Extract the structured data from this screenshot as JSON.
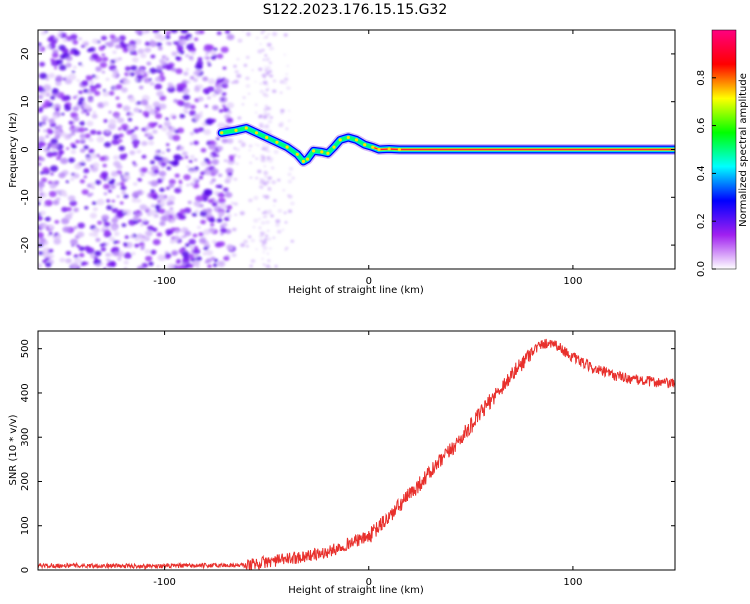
{
  "title": "S122.2023.176.15.15.G32",
  "chart_data": [
    {
      "type": "heatmap",
      "xlabel": "Height of straight line (km)",
      "ylabel": "Frequency (Hz)",
      "xlim": [
        -162,
        150
      ],
      "ylim": [
        -25,
        25
      ],
      "xticks": [
        -100,
        0,
        100
      ],
      "yticks": [
        -20,
        -10,
        0,
        10,
        20
      ],
      "colorbar": {
        "label": "Normalized spectral amplitude",
        "range": [
          0,
          1
        ],
        "ticks": [
          "0.0",
          "0.2",
          "0.4",
          "0.6",
          "0.8"
        ],
        "colors": [
          "#ffffff",
          "#a020f0",
          "#0000ff",
          "#00ffff",
          "#00ff00",
          "#ffff00",
          "#ff0000",
          "#ff0080"
        ]
      },
      "ridge": {
        "x": [
          -72,
          -65,
          -60,
          -55,
          -50,
          -45,
          -40,
          -35,
          -32,
          -30,
          -27,
          -23,
          -20,
          -17,
          -14,
          -10,
          -6,
          -2,
          2,
          5,
          10,
          15,
          60,
          80,
          100,
          150
        ],
        "y": [
          3.5,
          4,
          4.5,
          3.5,
          2.5,
          1.5,
          0.5,
          -1,
          -2.5,
          -2,
          -0.3,
          -0.5,
          -0.8,
          0.5,
          2,
          2.5,
          2,
          1,
          0.5,
          0,
          0.1,
          0,
          0,
          0,
          0,
          0
        ]
      }
    },
    {
      "type": "line",
      "xlabel": "Height of straight line (km)",
      "ylabel": "SNR (10 * v/v)",
      "xlim": [
        -162,
        150
      ],
      "ylim": [
        0,
        540
      ],
      "xticks": [
        -100,
        0,
        100
      ],
      "yticks": [
        0,
        100,
        200,
        300,
        400,
        500
      ],
      "color": "#e8302c",
      "x": [
        -162,
        -140,
        -120,
        -100,
        -80,
        -60,
        -50,
        -40,
        -30,
        -20,
        -10,
        0,
        10,
        20,
        30,
        40,
        50,
        60,
        70,
        80,
        85,
        90,
        100,
        110,
        120,
        130,
        140,
        150
      ],
      "y": [
        10,
        10,
        9,
        9,
        10,
        11,
        18,
        25,
        32,
        40,
        60,
        75,
        120,
        170,
        220,
        270,
        325,
        385,
        440,
        495,
        510,
        515,
        480,
        455,
        440,
        430,
        425,
        420
      ]
    }
  ]
}
